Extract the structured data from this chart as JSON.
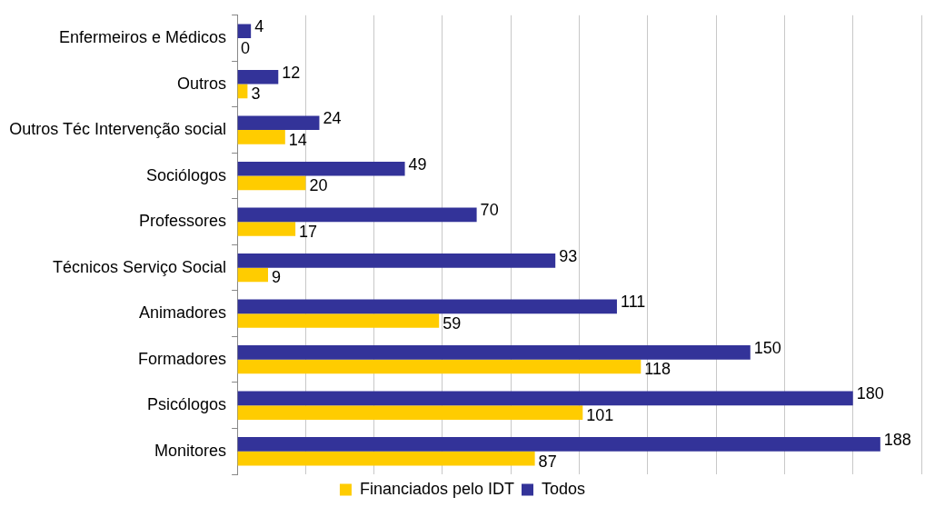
{
  "chart_data": {
    "type": "bar",
    "orientation": "horizontal",
    "categories": [
      "Enfermeiros e Médicos",
      "Outros",
      "Outros Téc Intervenção social",
      "Sociólogos",
      "Professores",
      "Técnicos Serviço Social",
      "Animadores",
      "Formadores",
      "Psicólogos",
      "Monitores"
    ],
    "series": [
      {
        "name": "Todos",
        "color": "#333399",
        "values": [
          4,
          12,
          24,
          49,
          70,
          93,
          111,
          150,
          180,
          188
        ]
      },
      {
        "name": "Financiados pelo IDT",
        "color": "#ffcc00",
        "values": [
          0,
          3,
          14,
          20,
          17,
          9,
          59,
          118,
          101,
          87
        ]
      }
    ],
    "xlim": [
      0,
      200
    ],
    "xticks": [
      {
        "value": 0,
        "label": null
      },
      {
        "value": 20,
        "label": null
      },
      {
        "value": 40,
        "label": null
      },
      {
        "value": 60,
        "label": null
      },
      {
        "value": 80,
        "label": null
      },
      {
        "value": 100,
        "label": null
      },
      {
        "value": 120,
        "label": null
      },
      {
        "value": 140,
        "label": null
      },
      {
        "value": 160,
        "label": null
      },
      {
        "value": 180,
        "label": null
      },
      {
        "value": 200,
        "label": null
      }
    ],
    "tick_labels": "y",
    "grid": "x",
    "legend": "bottom",
    "data_labels": true
  }
}
